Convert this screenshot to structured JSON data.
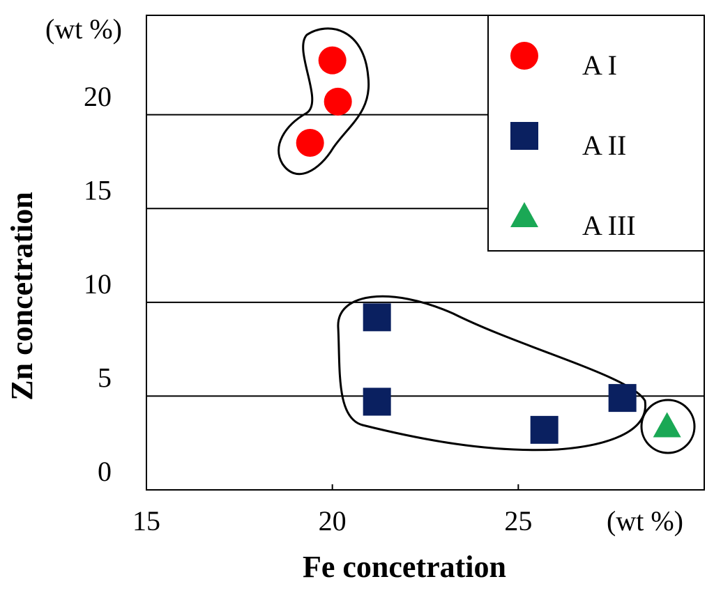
{
  "chart_data": {
    "type": "scatter",
    "x_label": "Fe concetration",
    "y_label": "Zn concetration",
    "x_unit": "(wt %)",
    "y_unit": "(wt %)",
    "xlim": [
      15,
      30
    ],
    "ylim": [
      0,
      25.3
    ],
    "xticks": [
      15,
      20,
      25
    ],
    "yticks": [
      0,
      5,
      10,
      15,
      20
    ],
    "grid": true,
    "legend": "upper right",
    "series": [
      {
        "name": "A I",
        "color": "#ff0000",
        "marker": "circle",
        "x": [
          20.0,
          20.15,
          19.4
        ],
        "values": [
          22.9,
          20.7,
          18.5
        ]
      },
      {
        "name": "A II",
        "color": "#0a2060",
        "marker": "square",
        "x": [
          21.2,
          21.2,
          25.7,
          27.8
        ],
        "values": [
          9.2,
          4.7,
          3.2,
          4.9
        ]
      },
      {
        "name": "A III",
        "color": "#1aa855",
        "marker": "triangle",
        "x": [
          29.0
        ],
        "values": [
          3.4
        ]
      }
    ]
  }
}
